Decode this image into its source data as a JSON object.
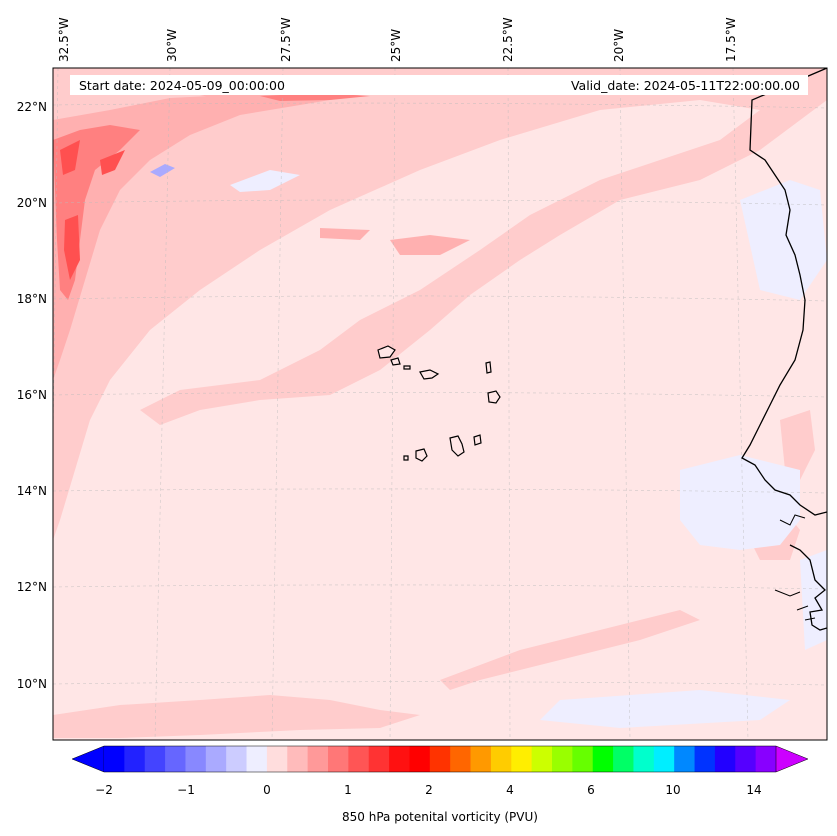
{
  "map": {
    "start_date": "Start date: 2024-05-09_00:00:00",
    "valid_date": "Valid_date: 2024-05-11T22:00:00.00",
    "lon_labels": [
      "32.5°W",
      "30°W",
      "27.5°W",
      "25°W",
      "22.5°W",
      "20°W",
      "17.5°W"
    ],
    "lat_labels": [
      "22°N",
      "20°N",
      "18°N",
      "16°N",
      "14°N",
      "12°N",
      "10°N"
    ],
    "colors": {
      "background_field": "#ffe6e6",
      "light_red": "#ffcccc",
      "medium_red": "#ffb0b0",
      "strong_red": "#ff8080",
      "deep_red": "#ff5050",
      "light_blue": "#eeeeff",
      "blue": "#aaaaff",
      "coastline": "#000000"
    }
  },
  "colorbar": {
    "label": "850 hPa potenital vorticity (PVU)",
    "ticks": [
      "−2",
      "−1",
      "0",
      "1",
      "2",
      "4",
      "6",
      "10",
      "14"
    ],
    "colors": [
      "#0000ff",
      "#2222ff",
      "#4444ff",
      "#6666ff",
      "#8888ff",
      "#aaaaff",
      "#ccccff",
      "#eeeeff",
      "#ffdddd",
      "#ffbbbb",
      "#ff9999",
      "#ff7777",
      "#ff5555",
      "#ff3333",
      "#ff1111",
      "#ff0000",
      "#ff3300",
      "#ff6600",
      "#ff9900",
      "#ffcc00",
      "#ffee00",
      "#ccff00",
      "#99ff00",
      "#66ff00",
      "#00ff00",
      "#00ff66",
      "#00ffcc",
      "#00eeff",
      "#0088ff",
      "#0033ff",
      "#2200ff",
      "#5500ff",
      "#8800ff"
    ],
    "under_color": "#0000ff",
    "over_color": "#cc00ff"
  }
}
